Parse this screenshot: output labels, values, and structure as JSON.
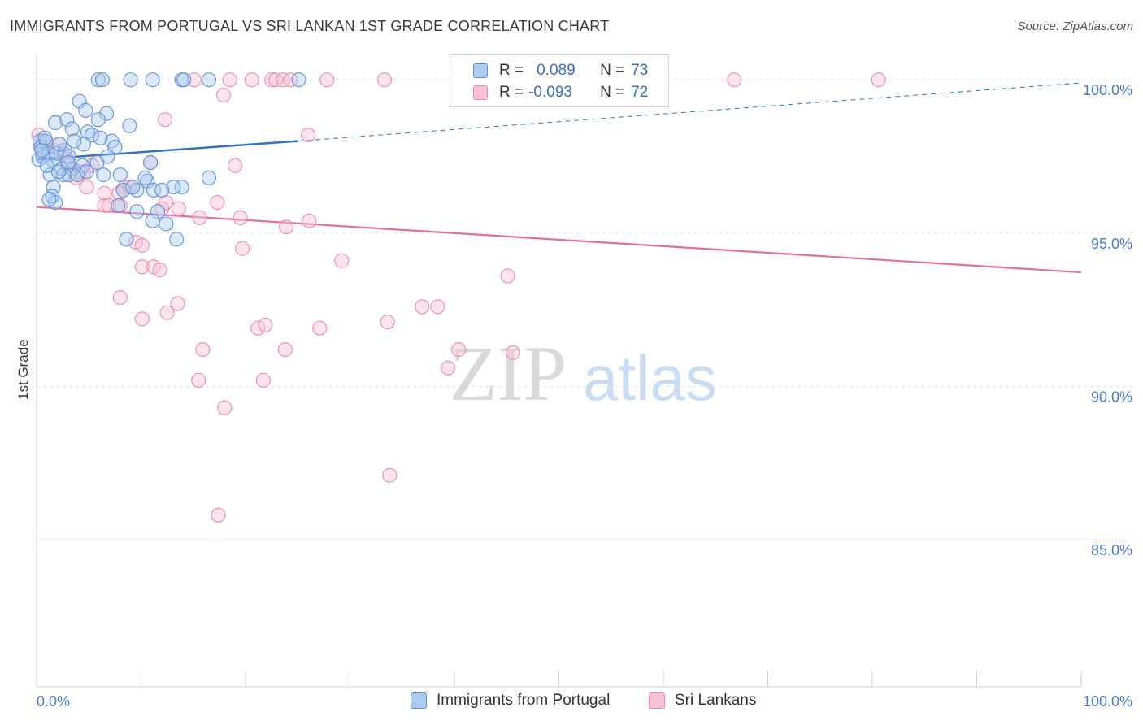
{
  "title": "IMMIGRANTS FROM PORTUGAL VS SRI LANKAN 1ST GRADE CORRELATION CHART",
  "source": "Source: ZipAtlas.com",
  "watermark": {
    "zip": "ZIP",
    "atlas": "atlas"
  },
  "colors": {
    "blue": "#5b8fd6",
    "blue_fill": "#aecbf0",
    "blue_line": "#2f72c9",
    "pink": "#e889ab",
    "pink_fill": "#f7c3d4",
    "pink_line": "#e36f9b",
    "tick": "#4a7cc7",
    "grid": "#e2e2e2"
  },
  "legend": {
    "rows": [
      {
        "r_label": "R =",
        "r_value": "0.089",
        "n_label": "N =",
        "n_value": "73"
      },
      {
        "r_label": "R =",
        "r_value": "-0.093",
        "n_label": "N =",
        "n_value": "72"
      }
    ]
  },
  "chart_data": {
    "type": "scatter",
    "title": "IMMIGRANTS FROM PORTUGAL VS SRI LANKAN 1ST GRADE CORRELATION CHART",
    "xlabel": "",
    "ylabel": "1st Grade",
    "xlim": [
      0,
      100
    ],
    "ylim": [
      80.2,
      100.8
    ],
    "x_tick_labels": [
      "0.0%",
      "100.0%"
    ],
    "y_ticks": [
      {
        "value": 85,
        "label": "85.0%"
      },
      {
        "value": 90,
        "label": "90.0%"
      },
      {
        "value": 95,
        "label": "95.0%"
      },
      {
        "value": 100,
        "label": "100.0%"
      }
    ],
    "series": [
      {
        "name": "Immigrants from Portugal",
        "color": "blue",
        "R": 0.089,
        "N": 73,
        "trend": {
          "x0": 0,
          "y0": 97.4,
          "x1": 25,
          "y1": 98.0,
          "dash_x1": 100,
          "dash_y1": 99.9
        },
        "points": [
          [
            5.9,
            100
          ],
          [
            6.3,
            100
          ],
          [
            9.0,
            100
          ],
          [
            11.1,
            100
          ],
          [
            13.9,
            100
          ],
          [
            14.1,
            100
          ],
          [
            16.5,
            100
          ],
          [
            25.1,
            100
          ],
          [
            4.1,
            99.3
          ],
          [
            4.7,
            99.0
          ],
          [
            6.7,
            98.9
          ],
          [
            1.8,
            98.6
          ],
          [
            5.9,
            98.7
          ],
          [
            2.9,
            98.7
          ],
          [
            3.4,
            98.4
          ],
          [
            4.9,
            98.3
          ],
          [
            8.9,
            98.5
          ],
          [
            0.3,
            98.0
          ],
          [
            0.9,
            98.0
          ],
          [
            5.3,
            98.2
          ],
          [
            7.2,
            98.0
          ],
          [
            4.5,
            97.9
          ],
          [
            0.4,
            97.8
          ],
          [
            1.1,
            97.6
          ],
          [
            2.7,
            97.7
          ],
          [
            7.5,
            97.8
          ],
          [
            0.2,
            97.4
          ],
          [
            1.5,
            97.4
          ],
          [
            3.1,
            97.5
          ],
          [
            5.8,
            97.3
          ],
          [
            10.9,
            97.3
          ],
          [
            2.4,
            97.1
          ],
          [
            3.4,
            97.1
          ],
          [
            0.6,
            97.5
          ],
          [
            1.3,
            96.9
          ],
          [
            2.6,
            96.9
          ],
          [
            3.1,
            96.9
          ],
          [
            3.9,
            96.9
          ],
          [
            6.4,
            96.9
          ],
          [
            8.0,
            96.9
          ],
          [
            1.6,
            96.5
          ],
          [
            10.6,
            96.7
          ],
          [
            13.9,
            96.5
          ],
          [
            8.3,
            96.4
          ],
          [
            9.6,
            96.4
          ],
          [
            11.2,
            96.4
          ],
          [
            13.1,
            96.5
          ],
          [
            1.5,
            96.2
          ],
          [
            1.8,
            96.0
          ],
          [
            1.2,
            96.1
          ],
          [
            16.5,
            96.8
          ],
          [
            7.8,
            95.9
          ],
          [
            9.6,
            95.7
          ],
          [
            11.6,
            95.7
          ],
          [
            12.4,
            95.3
          ],
          [
            8.6,
            94.8
          ],
          [
            13.4,
            94.8
          ],
          [
            10.4,
            96.8
          ],
          [
            2.1,
            97.0
          ],
          [
            4.4,
            97.2
          ],
          [
            0.5,
            97.7
          ],
          [
            1.9,
            97.6
          ],
          [
            3.6,
            98.0
          ],
          [
            6.1,
            98.1
          ],
          [
            2.2,
            97.9
          ],
          [
            0.8,
            98.1
          ],
          [
            12.0,
            96.4
          ],
          [
            9.2,
            96.5
          ],
          [
            11.1,
            95.4
          ],
          [
            4.8,
            97.0
          ],
          [
            1.0,
            97.2
          ],
          [
            3.0,
            97.3
          ],
          [
            6.8,
            97.5
          ]
        ]
      },
      {
        "name": "Sri Lankans",
        "color": "pink",
        "R": -0.093,
        "N": 72,
        "trend": {
          "x0": 0,
          "y0": 95.85,
          "x1": 100,
          "y1": 93.72
        },
        "points": [
          [
            0.2,
            98.2
          ],
          [
            0.6,
            98.0
          ],
          [
            1.0,
            97.8
          ],
          [
            1.6,
            97.7
          ],
          [
            2.6,
            97.6
          ],
          [
            3.0,
            97.2
          ],
          [
            4.5,
            97.0
          ],
          [
            3.8,
            96.8
          ],
          [
            4.8,
            96.5
          ],
          [
            6.5,
            96.3
          ],
          [
            8.4,
            96.5
          ],
          [
            7.9,
            96.3
          ],
          [
            8.9,
            96.5
          ],
          [
            6.5,
            95.9
          ],
          [
            6.9,
            95.9
          ],
          [
            8.0,
            95.9
          ],
          [
            12.0,
            95.8
          ],
          [
            13.6,
            95.8
          ],
          [
            15.6,
            95.5
          ],
          [
            17.3,
            96.0
          ],
          [
            19.5,
            95.5
          ],
          [
            23.9,
            95.2
          ],
          [
            26.1,
            95.4
          ],
          [
            9.5,
            94.7
          ],
          [
            10.1,
            94.6
          ],
          [
            19.7,
            94.5
          ],
          [
            29.2,
            94.1
          ],
          [
            10.1,
            93.9
          ],
          [
            11.2,
            93.9
          ],
          [
            11.8,
            93.8
          ],
          [
            45.1,
            93.6
          ],
          [
            8.0,
            92.9
          ],
          [
            13.5,
            92.7
          ],
          [
            12.5,
            92.4
          ],
          [
            10.1,
            92.2
          ],
          [
            36.9,
            92.6
          ],
          [
            38.4,
            92.6
          ],
          [
            33.6,
            92.1
          ],
          [
            27.1,
            91.9
          ],
          [
            21.2,
            91.9
          ],
          [
            21.9,
            92.0
          ],
          [
            15.9,
            91.2
          ],
          [
            23.8,
            91.2
          ],
          [
            40.4,
            91.2
          ],
          [
            45.6,
            91.1
          ],
          [
            39.4,
            90.6
          ],
          [
            15.5,
            90.2
          ],
          [
            21.7,
            90.2
          ],
          [
            18.0,
            89.3
          ],
          [
            33.8,
            87.1
          ],
          [
            17.4,
            85.8
          ],
          [
            15.1,
            100
          ],
          [
            18.5,
            100
          ],
          [
            20.6,
            100
          ],
          [
            22.5,
            100
          ],
          [
            22.9,
            100
          ],
          [
            23.6,
            100
          ],
          [
            24.3,
            100
          ],
          [
            27.8,
            100
          ],
          [
            33.3,
            100
          ],
          [
            41.3,
            100
          ],
          [
            66.8,
            100
          ],
          [
            80.6,
            100
          ],
          [
            17.9,
            99.5
          ],
          [
            12.3,
            98.7
          ],
          [
            26.0,
            98.2
          ],
          [
            10.9,
            97.3
          ],
          [
            19.0,
            97.2
          ],
          [
            5.3,
            97.2
          ],
          [
            2.2,
            97.9
          ],
          [
            2.9,
            97.4
          ],
          [
            4.1,
            97.0
          ],
          [
            12.4,
            96.0
          ]
        ]
      }
    ]
  },
  "bottom_legend": {
    "blue_label": "Immigrants from Portugal",
    "pink_label": "Sri Lankans"
  }
}
